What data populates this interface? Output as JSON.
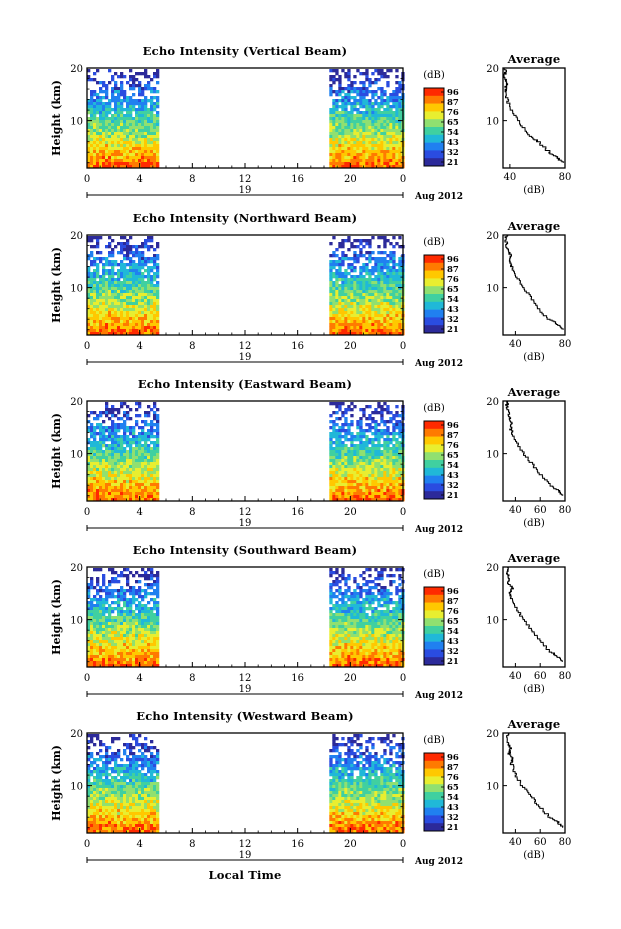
{
  "figure": {
    "xlabel": "Local Time",
    "date_label": "Aug 2012",
    "day_label": "19",
    "colorbar_unit": "(dB)",
    "colorbar_ticks": [
      "96",
      "87",
      "76",
      "65",
      "54",
      "43",
      "32",
      "21"
    ],
    "colorbar_colors": [
      "#ff2a00",
      "#ff7a00",
      "#ffc800",
      "#e8ee30",
      "#90e070",
      "#40d0a0",
      "#20b8d8",
      "#2080f0",
      "#2a4ce0",
      "#2c2a9a"
    ],
    "average_title": "Average",
    "average_xlabel": "(dB)"
  },
  "chart_data": [
    {
      "type": "heatmap",
      "title": "Echo Intensity (Vertical Beam)",
      "ylabel": "Height (km)",
      "xlim": [
        0,
        24
      ],
      "ylim": [
        1,
        20
      ],
      "xticks": [
        "0",
        "4",
        "8",
        "12",
        "16",
        "20",
        "0"
      ],
      "yticks": [
        "20",
        "10"
      ],
      "data_ranges": [
        [
          0,
          5.4
        ],
        [
          18.4,
          24
        ]
      ],
      "colorbar": {
        "label": "(dB)",
        "ticks": [
          "96",
          "87",
          "76",
          "65",
          "54",
          "43",
          "32",
          "21"
        ]
      },
      "average": {
        "title": "Average",
        "xlabel": "(dB)",
        "xlim": [
          35,
          80
        ],
        "xticks": [
          "40",
          "80"
        ],
        "yticks": [
          "20",
          "10"
        ],
        "profile": [
          [
            78,
            2
          ],
          [
            74,
            3
          ],
          [
            68,
            4
          ],
          [
            60,
            6
          ],
          [
            55,
            7
          ],
          [
            48,
            9
          ],
          [
            43,
            11
          ],
          [
            39,
            13
          ],
          [
            37,
            15
          ],
          [
            37,
            16
          ],
          [
            38,
            17
          ],
          [
            36,
            18
          ],
          [
            37,
            19
          ],
          [
            36,
            20
          ]
        ]
      }
    },
    {
      "type": "heatmap",
      "title": "Echo Intensity (Northward Beam)",
      "ylabel": "Height (km)",
      "xlim": [
        0,
        24
      ],
      "ylim": [
        1,
        20
      ],
      "xticks": [
        "0",
        "4",
        "8",
        "12",
        "16",
        "20",
        "0"
      ],
      "yticks": [
        "20",
        "10"
      ],
      "data_ranges": [
        [
          0,
          5.4
        ],
        [
          18.4,
          24
        ]
      ],
      "colorbar": {
        "label": "(dB)",
        "ticks": [
          "96",
          "87",
          "76",
          "65",
          "54",
          "43",
          "32",
          "21"
        ]
      },
      "average": {
        "title": "Average",
        "xlabel": "(dB)",
        "xlim": [
          30,
          80
        ],
        "xticks": [
          "40",
          "80"
        ],
        "yticks": [
          "20",
          "10"
        ],
        "profile": [
          [
            78,
            2
          ],
          [
            74,
            3
          ],
          [
            66,
            4
          ],
          [
            58,
            6
          ],
          [
            52,
            8
          ],
          [
            46,
            10
          ],
          [
            41,
            12
          ],
          [
            37,
            14
          ],
          [
            35,
            15
          ],
          [
            36,
            16
          ],
          [
            34,
            17
          ],
          [
            33,
            18
          ],
          [
            32,
            19
          ],
          [
            33,
            20
          ]
        ]
      }
    },
    {
      "type": "heatmap",
      "title": "Echo Intensity (Eastward Beam)",
      "ylabel": "Height (km)",
      "xlim": [
        0,
        24
      ],
      "ylim": [
        1,
        20
      ],
      "xticks": [
        "0",
        "4",
        "8",
        "12",
        "16",
        "20",
        "0"
      ],
      "yticks": [
        "20",
        "10"
      ],
      "data_ranges": [
        [
          0,
          5.4
        ],
        [
          18.4,
          24
        ]
      ],
      "colorbar": {
        "label": "(dB)",
        "ticks": [
          "96",
          "87",
          "76",
          "65",
          "54",
          "43",
          "32",
          "21"
        ]
      },
      "average": {
        "title": "Average",
        "xlabel": "(dB)",
        "xlim": [
          30,
          80
        ],
        "xticks": [
          "40",
          "60",
          "80"
        ],
        "yticks": [
          "20",
          "10"
        ],
        "profile": [
          [
            78,
            2
          ],
          [
            74,
            3
          ],
          [
            68,
            4
          ],
          [
            60,
            6
          ],
          [
            53,
            8
          ],
          [
            46,
            10
          ],
          [
            41,
            12
          ],
          [
            37,
            14
          ],
          [
            36,
            15
          ],
          [
            37,
            16
          ],
          [
            35,
            17
          ],
          [
            34,
            18
          ],
          [
            33,
            19
          ],
          [
            34,
            20
          ]
        ]
      }
    },
    {
      "type": "heatmap",
      "title": "Echo Intensity (Southward Beam)",
      "ylabel": "Height (km)",
      "xlim": [
        0,
        24
      ],
      "ylim": [
        1,
        20
      ],
      "xticks": [
        "0",
        "4",
        "8",
        "12",
        "16",
        "20",
        "0"
      ],
      "yticks": [
        "20",
        "10"
      ],
      "data_ranges": [
        [
          0,
          5.4
        ],
        [
          18.4,
          24
        ]
      ],
      "colorbar": {
        "label": "(dB)",
        "ticks": [
          "96",
          "87",
          "76",
          "65",
          "54",
          "43",
          "32",
          "21"
        ]
      },
      "average": {
        "title": "Average",
        "xlabel": "(dB)",
        "xlim": [
          30,
          80
        ],
        "xticks": [
          "40",
          "60",
          "80"
        ],
        "yticks": [
          "20",
          "10"
        ],
        "profile": [
          [
            78,
            2
          ],
          [
            74,
            3
          ],
          [
            67,
            4
          ],
          [
            59,
            6
          ],
          [
            53,
            8
          ],
          [
            46,
            10
          ],
          [
            41,
            12
          ],
          [
            37,
            14
          ],
          [
            36,
            15
          ],
          [
            38,
            16
          ],
          [
            34,
            17
          ],
          [
            35,
            18
          ],
          [
            33,
            19
          ],
          [
            34,
            20
          ]
        ]
      }
    },
    {
      "type": "heatmap",
      "title": "Echo Intensity (Westward Beam)",
      "ylabel": "Height (km)",
      "xlim": [
        0,
        24
      ],
      "ylim": [
        1,
        20
      ],
      "xticks": [
        "0",
        "4",
        "8",
        "12",
        "16",
        "20",
        "0"
      ],
      "yticks": [
        "20",
        "10"
      ],
      "data_ranges": [
        [
          0,
          5.4
        ],
        [
          18.4,
          24
        ]
      ],
      "colorbar": {
        "label": "(dB)",
        "ticks": [
          "96",
          "87",
          "76",
          "65",
          "54",
          "43",
          "32",
          "21"
        ]
      },
      "average": {
        "title": "Average",
        "xlabel": "(dB)",
        "xlim": [
          30,
          80
        ],
        "xticks": [
          "40",
          "60",
          "80"
        ],
        "yticks": [
          "20",
          "10"
        ],
        "profile": [
          [
            78,
            2
          ],
          [
            74,
            3
          ],
          [
            67,
            4
          ],
          [
            59,
            6
          ],
          [
            52,
            8
          ],
          [
            45,
            10
          ],
          [
            40,
            12
          ],
          [
            37,
            14
          ],
          [
            38,
            15
          ],
          [
            35,
            16
          ],
          [
            36,
            17
          ],
          [
            34,
            18
          ],
          [
            33,
            19
          ],
          [
            34,
            20
          ]
        ]
      }
    }
  ]
}
